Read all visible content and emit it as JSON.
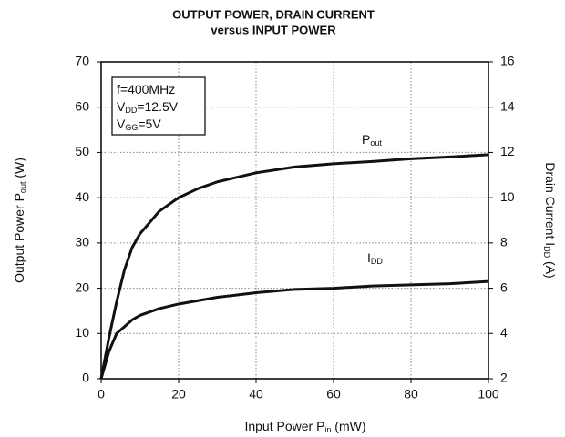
{
  "chart_data": {
    "type": "line",
    "title": "OUTPUT POWER, DRAIN CURRENT",
    "subtitle": "versus INPUT POWER",
    "xlabel": [
      "Input Power P",
      "in",
      " (mW)"
    ],
    "ylabel": [
      "Output Power P",
      "out",
      " (W)"
    ],
    "y2label": [
      "Drain Current I",
      "DD",
      " (A)"
    ],
    "annotation": [
      [
        "f=400MHz"
      ],
      [
        "V",
        "DD",
        "=12.5V"
      ],
      [
        "V",
        "GG",
        "=5V"
      ]
    ],
    "x": [
      0,
      2,
      4,
      6,
      8,
      10,
      15,
      20,
      25,
      30,
      40,
      50,
      60,
      70,
      80,
      90,
      100
    ],
    "series": [
      {
        "name": [
          "P",
          "out"
        ],
        "color": "#111111",
        "axis": "y",
        "values": [
          0,
          9,
          17,
          24,
          29,
          32,
          37,
          40,
          42,
          43.5,
          45.5,
          46.8,
          47.5,
          48,
          48.6,
          49,
          49.5
        ]
      },
      {
        "name": [
          "I",
          "DD"
        ],
        "color": "#111111",
        "axis": "y2",
        "values": [
          2,
          3.2,
          4.0,
          4.3,
          4.6,
          4.8,
          5.1,
          5.3,
          5.45,
          5.6,
          5.8,
          5.95,
          6.0,
          6.1,
          6.15,
          6.2,
          6.3
        ]
      }
    ],
    "xlim": [
      0,
      100
    ],
    "xticks": [
      0,
      20,
      40,
      60,
      80,
      100
    ],
    "ylim": [
      0,
      70
    ],
    "yticks": [
      0,
      10,
      20,
      30,
      40,
      50,
      60,
      70
    ],
    "y2lim": [
      2,
      16
    ],
    "y2ticks": [
      2,
      4,
      6,
      8,
      10,
      12,
      14,
      16
    ],
    "grid": true
  }
}
